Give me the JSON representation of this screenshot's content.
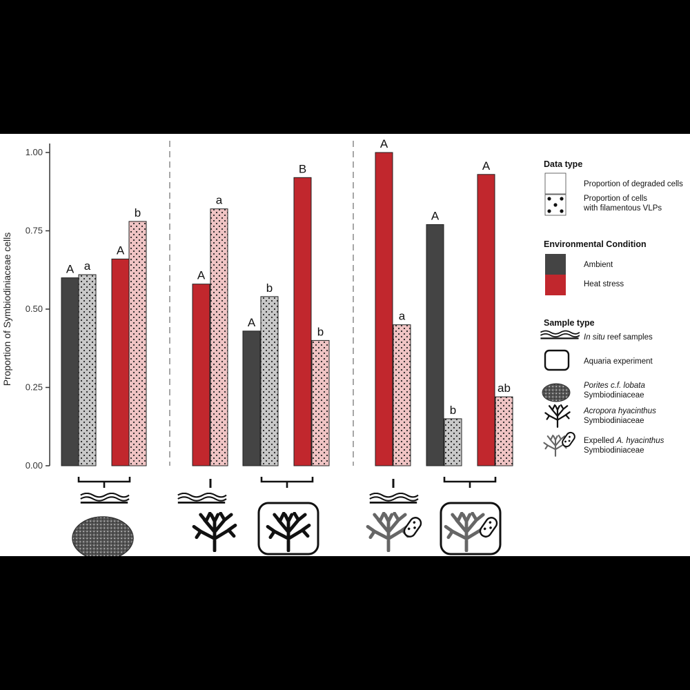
{
  "chart_data": {
    "type": "bar",
    "ylabel": "Proportion of Symbiodiniaceae cells",
    "ylim": [
      0,
      1
    ],
    "yticks": [
      "0.00",
      "0.25",
      "0.50",
      "0.75",
      "1.00"
    ],
    "colors": {
      "ambient": "#444444",
      "heat": "#c1272d",
      "ambient_light": "#c8c8c8",
      "heat_light": "#f0c4c4"
    },
    "bars": [
      {
        "panel": 1,
        "condition": "Ambient",
        "data_type": "degraded",
        "value": 0.6,
        "label": "A"
      },
      {
        "panel": 1,
        "condition": "Ambient",
        "data_type": "vlp",
        "value": 0.61,
        "label": "a"
      },
      {
        "panel": 1,
        "condition": "Heat stress",
        "data_type": "degraded",
        "value": 0.66,
        "label": "A"
      },
      {
        "panel": 1,
        "condition": "Heat stress",
        "data_type": "vlp",
        "value": 0.78,
        "label": "b"
      },
      {
        "panel": 2,
        "condition": "Heat stress",
        "data_type": "degraded",
        "value": 0.58,
        "label": "A"
      },
      {
        "panel": 2,
        "condition": "Heat stress",
        "data_type": "vlp",
        "value": 0.82,
        "label": "a"
      },
      {
        "panel": 2,
        "condition": "Ambient",
        "data_type": "degraded",
        "value": 0.43,
        "label": "A"
      },
      {
        "panel": 2,
        "condition": "Ambient",
        "data_type": "vlp",
        "value": 0.54,
        "label": "b"
      },
      {
        "panel": 2,
        "condition": "Heat stress",
        "data_type": "degraded",
        "value": 0.92,
        "label": "B"
      },
      {
        "panel": 2,
        "condition": "Heat stress",
        "data_type": "vlp",
        "value": 0.4,
        "label": "b"
      },
      {
        "panel": 3,
        "condition": "Heat stress",
        "data_type": "degraded",
        "value": 1.0,
        "label": "A"
      },
      {
        "panel": 3,
        "condition": "Heat stress",
        "data_type": "vlp",
        "value": 0.45,
        "label": "a"
      },
      {
        "panel": 3,
        "condition": "Ambient",
        "data_type": "degraded",
        "value": 0.77,
        "label": "A"
      },
      {
        "panel": 3,
        "condition": "Ambient",
        "data_type": "vlp",
        "value": 0.15,
        "label": "b"
      },
      {
        "panel": 3,
        "condition": "Heat stress",
        "data_type": "degraded",
        "value": 0.93,
        "label": "A"
      },
      {
        "panel": 3,
        "condition": "Heat stress",
        "data_type": "vlp",
        "value": 0.22,
        "label": "ab"
      }
    ]
  },
  "legend": {
    "data_type": {
      "title": "Data type",
      "degraded": "Proportion of degraded cells",
      "vlp_line1": "Proportion of cells",
      "vlp_line2": "with filamentous VLPs"
    },
    "condition": {
      "title": "Environmental Condition",
      "ambient": "Ambient",
      "heat": "Heat stress"
    },
    "sample": {
      "title": "Sample type",
      "insitu_italic": "In situ",
      "insitu_rest": " reef samples",
      "aquaria": "Aquaria experiment",
      "porites_italic": "Porites c.f. lobata",
      "porites_line2": "Symbiodiniaceae",
      "acropora_italic": "Acropora hyacinthus",
      "acropora_line2": "Symbiodiniaceae",
      "expelled_plain": "Expelled ",
      "expelled_italic": "A. hyacinthus",
      "expelled_line2": "Symbiodiniaceae"
    }
  }
}
